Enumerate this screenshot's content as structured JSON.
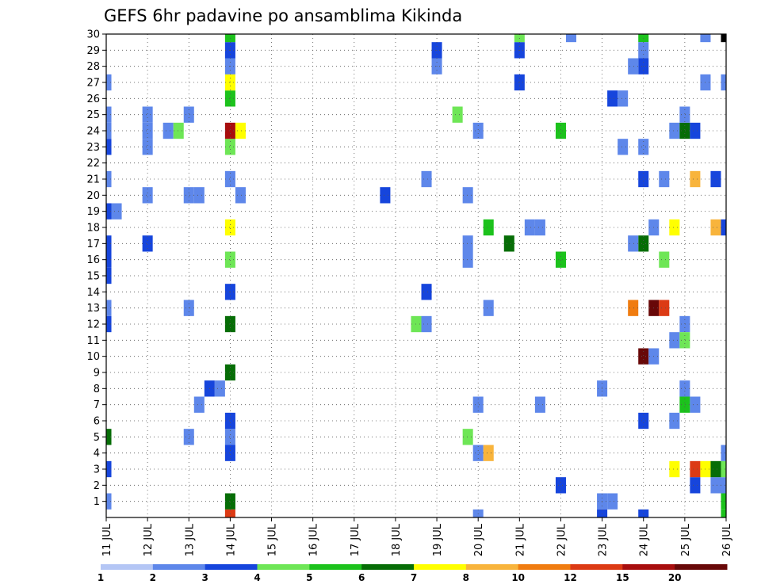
{
  "chart_data": {
    "type": "heatmap",
    "title": "GEFS 6hr padavine po ansamblima Kikinda",
    "xlabel": "",
    "ylabel": "",
    "x_ticks": [
      "11 JUL",
      "12 JUL",
      "13 JUL",
      "14 JUL",
      "15 JUL",
      "16 JUL",
      "17 JUL",
      "18 JUL",
      "19 JUL",
      "20 JUL",
      "21 JUL",
      "22 JUL",
      "23 JUL",
      "24 JUL",
      "25 JUL",
      "26 JUL"
    ],
    "y_ticks": [
      "1",
      "2",
      "3",
      "4",
      "5",
      "6",
      "7",
      "8",
      "9",
      "10",
      "11",
      "12",
      "13",
      "14",
      "15",
      "16",
      "17",
      "18",
      "19",
      "20",
      "21",
      "22",
      "23",
      "24",
      "25",
      "26",
      "27",
      "28",
      "29",
      "30"
    ],
    "xlim": [
      0,
      15
    ],
    "ylim": [
      0,
      30
    ],
    "step_days": 0.25,
    "grid": true,
    "legend_position": "bottom",
    "legend": {
      "labels": [
        "1",
        "2",
        "3",
        "4",
        "5",
        "6",
        "7",
        "8",
        "10",
        "12",
        "15",
        "20"
      ],
      "colors": [
        "#b4c6f5",
        "#5e87ea",
        "#1645dc",
        "#6ee656",
        "#1cc21c",
        "#066d06",
        "#ffff00",
        "#f8b43c",
        "#f07c10",
        "#dc3a14",
        "#a80e0e",
        "#680808"
      ]
    },
    "cells": [
      [
        0,
        0,
        1
      ],
      [
        0,
        2,
        2
      ],
      [
        0,
        4,
        5
      ],
      [
        0,
        11,
        2
      ],
      [
        0,
        12,
        1
      ],
      [
        0,
        14,
        2
      ],
      [
        0,
        15,
        2
      ],
      [
        0,
        16,
        2
      ],
      [
        0,
        18,
        2
      ],
      [
        0,
        20,
        1
      ],
      [
        0,
        22,
        2
      ],
      [
        0,
        23,
        1
      ],
      [
        0,
        24,
        1
      ],
      [
        0,
        26,
        1
      ],
      [
        0.25,
        18,
        1
      ],
      [
        1,
        19,
        1
      ],
      [
        1,
        22,
        1
      ],
      [
        1,
        23,
        1
      ],
      [
        1,
        24,
        1
      ],
      [
        1,
        16,
        2
      ],
      [
        1.5,
        23,
        1
      ],
      [
        1.75,
        23,
        3
      ],
      [
        2,
        4,
        1
      ],
      [
        2,
        12,
        1
      ],
      [
        2,
        19,
        1
      ],
      [
        2,
        24,
        1
      ],
      [
        2.25,
        6,
        1
      ],
      [
        2.25,
        19,
        1
      ],
      [
        2.5,
        7,
        2
      ],
      [
        2.75,
        7,
        1
      ],
      [
        3,
        -1,
        9
      ],
      [
        3,
        0,
        5
      ],
      [
        3,
        3,
        2
      ],
      [
        3,
        4,
        1
      ],
      [
        3,
        5,
        2
      ],
      [
        3,
        8,
        5
      ],
      [
        3,
        11,
        5
      ],
      [
        3,
        13,
        2
      ],
      [
        3,
        15,
        3
      ],
      [
        3,
        17,
        6
      ],
      [
        3,
        20,
        1
      ],
      [
        3,
        22,
        3
      ],
      [
        3,
        23,
        10
      ],
      [
        3,
        25,
        4
      ],
      [
        3,
        26,
        6
      ],
      [
        3,
        27,
        1
      ],
      [
        3,
        28,
        2
      ],
      [
        3,
        29,
        4
      ],
      [
        3.25,
        19,
        1
      ],
      [
        3.25,
        23,
        6
      ],
      [
        6.75,
        19,
        2
      ],
      [
        7.5,
        11,
        3
      ],
      [
        7.75,
        11,
        1
      ],
      [
        7.75,
        13,
        2
      ],
      [
        7.75,
        20,
        1
      ],
      [
        8,
        27,
        1
      ],
      [
        8,
        28,
        2
      ],
      [
        8.5,
        24,
        3
      ],
      [
        8.75,
        4,
        3
      ],
      [
        8.75,
        15,
        1
      ],
      [
        8.75,
        16,
        1
      ],
      [
        8.75,
        19,
        1
      ],
      [
        9,
        3,
        1
      ],
      [
        9,
        6,
        1
      ],
      [
        9,
        23,
        1
      ],
      [
        9,
        -1,
        1
      ],
      [
        9.25,
        3,
        7
      ],
      [
        9.25,
        12,
        1
      ],
      [
        9.25,
        17,
        4
      ],
      [
        9.75,
        16,
        5
      ],
      [
        10,
        26,
        2
      ],
      [
        10,
        28,
        2
      ],
      [
        10,
        29,
        3
      ],
      [
        10.25,
        17,
        1
      ],
      [
        10.5,
        17,
        1
      ],
      [
        10.5,
        6,
        1
      ],
      [
        11,
        1,
        2
      ],
      [
        11,
        23,
        4
      ],
      [
        11,
        15,
        4
      ],
      [
        11.25,
        29,
        1
      ],
      [
        12,
        0,
        1
      ],
      [
        12,
        -1,
        2
      ],
      [
        12,
        7,
        1
      ],
      [
        12.25,
        0,
        1
      ],
      [
        12.25,
        25,
        2
      ],
      [
        12.5,
        25,
        1
      ],
      [
        12.5,
        22,
        1
      ],
      [
        12.75,
        12,
        8
      ],
      [
        13,
        20,
        2
      ],
      [
        13,
        22,
        1
      ],
      [
        13,
        9,
        11
      ],
      [
        13,
        5,
        2
      ],
      [
        13,
        -1,
        2
      ],
      [
        13,
        16,
        5
      ],
      [
        13,
        27,
        2
      ],
      [
        13,
        29,
        4
      ],
      [
        13,
        28,
        1
      ],
      [
        12.75,
        16,
        1
      ],
      [
        12.75,
        27,
        1
      ],
      [
        13.25,
        9,
        1
      ],
      [
        13.25,
        17,
        1
      ],
      [
        13.25,
        12,
        11
      ],
      [
        13.5,
        12,
        9
      ],
      [
        13.5,
        15,
        3
      ],
      [
        13.5,
        20,
        1
      ],
      [
        13.75,
        5,
        1
      ],
      [
        13.75,
        10,
        1
      ],
      [
        13.75,
        17,
        6
      ],
      [
        13.75,
        23,
        1
      ],
      [
        13.75,
        2,
        6
      ],
      [
        14,
        6,
        4
      ],
      [
        14,
        7,
        1
      ],
      [
        14,
        11,
        1
      ],
      [
        14,
        10,
        3
      ],
      [
        14,
        23,
        5
      ],
      [
        14,
        24,
        1
      ],
      [
        14.25,
        1,
        2
      ],
      [
        14.25,
        6,
        1
      ],
      [
        14.25,
        23,
        2
      ],
      [
        14.25,
        2,
        9
      ],
      [
        14.25,
        20,
        7
      ],
      [
        14.5,
        2,
        6
      ],
      [
        14.5,
        29,
        1
      ],
      [
        14.5,
        26,
        1
      ],
      [
        14.75,
        1,
        1
      ],
      [
        14.75,
        2,
        5
      ],
      [
        14.75,
        17,
        7
      ],
      [
        14.75,
        20,
        2
      ],
      [
        15,
        -1,
        4
      ],
      [
        15,
        0,
        4
      ],
      [
        15,
        1,
        1
      ],
      [
        15,
        2,
        3
      ],
      [
        15,
        3,
        1
      ],
      [
        15,
        17,
        2
      ],
      [
        15,
        26,
        1
      ],
      [
        15,
        29,
        12
      ]
    ]
  }
}
